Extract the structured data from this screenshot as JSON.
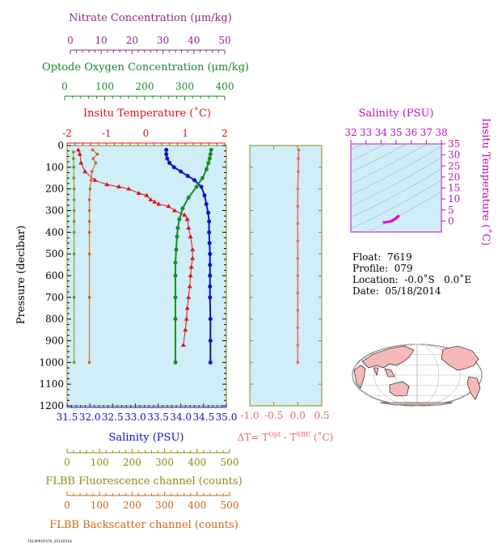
{
  "axes": {
    "nitrate": {
      "title": "Nitrate Concentration (μm/kg)",
      "range": [
        0,
        50
      ],
      "ticks": [
        "0",
        "10",
        "20",
        "30",
        "40",
        "50"
      ],
      "color": "#8b2a8b"
    },
    "oxygen": {
      "title": "Optode Oxygen Concentration (μm/kg)",
      "range": [
        0,
        400
      ],
      "ticks": [
        "0",
        "100",
        "200",
        "300",
        "400"
      ],
      "color": "#1a8a2a"
    },
    "temperature": {
      "title": "Insitu Temperature (˚C)",
      "range": [
        -2,
        2
      ],
      "ticks": [
        "-2",
        "-1",
        "0",
        "1",
        "2"
      ],
      "color": "#e01010"
    },
    "pressure": {
      "title": "Pressure (decibar)",
      "range": [
        0,
        1200
      ],
      "ticks": [
        "0",
        "100",
        "200",
        "300",
        "400",
        "500",
        "600",
        "700",
        "800",
        "900",
        "1000",
        "1100",
        "1200"
      ]
    },
    "salinity": {
      "title": "Salinity (PSU)",
      "range": [
        31.5,
        35.0
      ],
      "ticks": [
        "31.5",
        "32.0",
        "32.5",
        "33.0",
        "33.5",
        "34.0",
        "34.5",
        "35.0"
      ],
      "color": "#1010c8"
    },
    "fluorescence": {
      "title": "FLBB Fluorescence channel (counts)",
      "range": [
        0,
        500
      ],
      "ticks": [
        "0",
        "100",
        "200",
        "300",
        "400",
        "500"
      ],
      "color": "#8a8a10"
    },
    "backscatter": {
      "title": "FLBB Backscatter channel (counts)",
      "range": [
        0,
        500
      ],
      "ticks": [
        "0",
        "100",
        "200",
        "300",
        "400",
        "500"
      ],
      "color": "#d26414"
    },
    "delta_t": {
      "title_main": "ΔT= T",
      "title_sup1": "Opt",
      "title_mid": " - T",
      "title_sup2": "SBE",
      "title_end": " (˚C)",
      "range": [
        -1.0,
        0.5
      ],
      "ticks": [
        "-1.0",
        "-0.5",
        "0.0",
        "0.5"
      ],
      "color": "#f06464"
    },
    "ts_salinity": {
      "title": "Salinity (PSU)",
      "range": [
        32,
        38
      ],
      "ticks": [
        "32",
        "33",
        "34",
        "35",
        "36",
        "37",
        "38"
      ],
      "color": "#c010c0"
    },
    "ts_temperature": {
      "title": "Insitu Temperature (˚C)",
      "range": [
        -5,
        35
      ],
      "ticks": [
        "0",
        "5",
        "10",
        "15",
        "20",
        "25",
        "30",
        "35"
      ],
      "color": "#c010c0"
    }
  },
  "float_info": {
    "float": "Float:  7619",
    "profile": "Profile:  079",
    "location": "Location:  -0.0˚S   0.0˚E",
    "date": "Date:  05/18/2014"
  },
  "footer_tag": "7619PROF079_20140518",
  "colors": {
    "panel_bg": "#cfeef8",
    "frame": "#8a8a10"
  },
  "chart_data": [
    {
      "type": "line",
      "title": "",
      "ylabel": "Pressure (decibar)",
      "ylim": [
        1200,
        0
      ],
      "series": [
        {
          "name": "Insitu Temperature",
          "axis": "temperature",
          "x": [
            -1.72,
            -1.68,
            -1.65,
            -1.55,
            -1.3,
            -1.0,
            -0.7,
            -0.45,
            -0.2,
            0.0,
            0.1,
            0.2,
            0.3,
            0.55,
            0.7,
            0.95,
            1.02,
            1.05,
            1.1,
            1.15,
            1.15,
            1.12,
            1.1,
            1.08,
            1.05,
            1.02,
            1.0,
            0.97,
            0.92
          ],
          "y": [
            20,
            40,
            80,
            120,
            160,
            180,
            190,
            200,
            220,
            230,
            250,
            260,
            270,
            280,
            300,
            320,
            340,
            380,
            420,
            480,
            520,
            560,
            600,
            650,
            700,
            750,
            800,
            850,
            920
          ]
        },
        {
          "name": "Salinity",
          "axis": "salinity",
          "x": [
            33.68,
            33.68,
            33.7,
            33.75,
            33.85,
            34.0,
            34.15,
            34.3,
            34.45,
            34.52,
            34.56,
            34.6,
            34.62,
            34.62,
            34.63,
            34.64,
            34.64,
            34.64,
            34.64,
            34.64,
            34.65,
            34.65,
            34.65
          ],
          "y": [
            20,
            40,
            60,
            80,
            100,
            120,
            140,
            160,
            190,
            230,
            270,
            310,
            350,
            400,
            450,
            500,
            550,
            600,
            650,
            700,
            800,
            900,
            1000
          ]
        },
        {
          "name": "Optode Oxygen",
          "axis": "oxygen",
          "x": [
            362,
            360,
            358,
            355,
            350,
            340,
            325,
            305,
            290,
            282,
            278,
            276,
            274,
            272,
            272,
            272,
            272,
            272
          ],
          "y": [
            20,
            40,
            60,
            80,
            110,
            150,
            190,
            240,
            290,
            340,
            380,
            420,
            480,
            540,
            600,
            700,
            800,
            1000
          ]
        },
        {
          "name": "FLBB Fluorescence",
          "axis": "fluorescence",
          "x": [
            20,
            20,
            21,
            21,
            22,
            22,
            22,
            22,
            22,
            22,
            22,
            22
          ],
          "y": [
            30,
            60,
            100,
            150,
            200,
            250,
            300,
            350,
            400,
            500,
            700,
            1000
          ]
        },
        {
          "name": "FLBB Backscatter",
          "axis": "backscatter",
          "x": [
            80,
            95,
            82,
            90,
            78,
            75,
            72,
            70,
            70,
            70,
            70,
            70,
            70,
            70
          ],
          "y": [
            20,
            40,
            60,
            80,
            120,
            160,
            200,
            250,
            300,
            350,
            400,
            500,
            700,
            1000
          ]
        },
        {
          "name": "ΔT",
          "axis": "delta_t",
          "x": [
            0.02,
            0.01,
            0.01,
            0.0,
            0.0,
            0.0,
            0.0,
            0.0,
            0.0,
            0.0,
            0.0,
            0.0,
            0.0,
            0.0
          ],
          "y": [
            20,
            60,
            120,
            200,
            280,
            360,
            440,
            520,
            600,
            680,
            760,
            840,
            920,
            1000
          ]
        },
        {
          "name": "T-S",
          "axis": "ts",
          "x": [
            34.2,
            34.35,
            34.5,
            34.6,
            34.7,
            34.75,
            34.8,
            34.85,
            34.9,
            34.95,
            35.0,
            35.05,
            35.1,
            35.15
          ],
          "y": [
            -0.6,
            -0.5,
            -0.3,
            -0.2,
            0.0,
            0.2,
            0.4,
            0.6,
            0.8,
            1.0,
            1.3,
            1.6,
            1.9,
            2.2
          ]
        }
      ]
    }
  ]
}
